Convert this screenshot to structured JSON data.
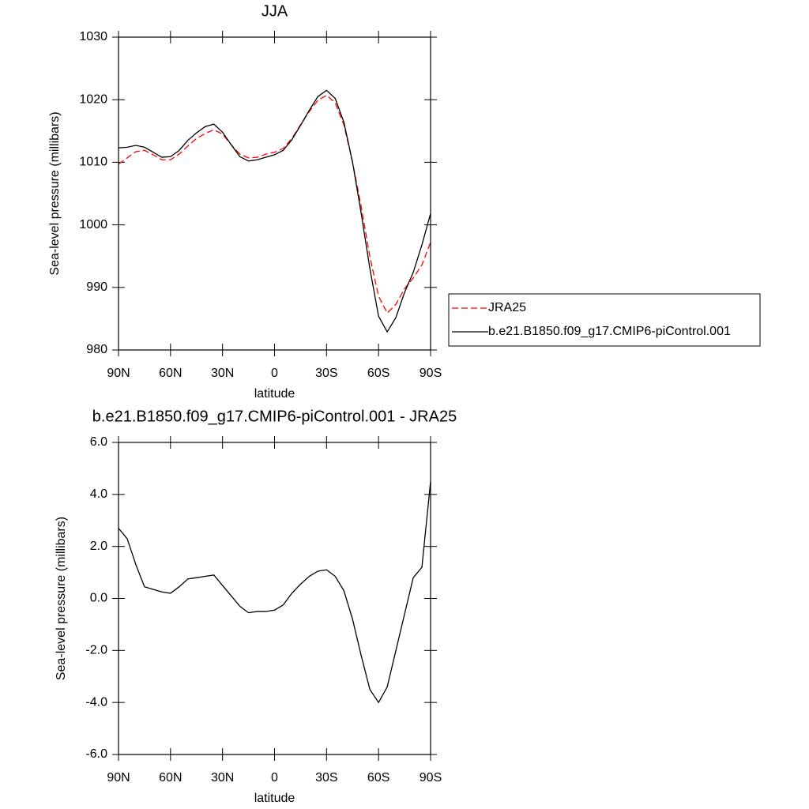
{
  "chart_data": [
    {
      "type": "line",
      "title": "JJA",
      "x_label": "latitude",
      "y_label": "Sea-level pressure (millibars)",
      "x": [
        90,
        85,
        80,
        75,
        70,
        65,
        60,
        55,
        50,
        45,
        40,
        35,
        30,
        25,
        20,
        15,
        10,
        5,
        0,
        -5,
        -10,
        -15,
        -20,
        -25,
        -30,
        -35,
        -40,
        -45,
        -50,
        -55,
        -60,
        -65,
        -70,
        -75,
        -80,
        -85,
        -90
      ],
      "xlim": [
        90,
        -90
      ],
      "xticks": [
        {
          "value": 90,
          "label": "90N"
        },
        {
          "value": 60,
          "label": "60N"
        },
        {
          "value": 30,
          "label": "30N"
        },
        0,
        {
          "value": -30,
          "label": "30S"
        },
        {
          "value": -60,
          "label": "60S"
        },
        {
          "value": -90,
          "label": "90S"
        }
      ],
      "ylim": [
        980,
        1030
      ],
      "yticks": [
        980,
        990,
        1000,
        1010,
        1020,
        1030
      ],
      "series": [
        {
          "name": "JRA25",
          "color": "#ff0000",
          "line_style": "dashed",
          "values": [
            1009.7,
            1010.7,
            1011.7,
            1011.9,
            1011.2,
            1010.4,
            1010.4,
            1011.3,
            1012.6,
            1013.8,
            1014.6,
            1015.2,
            1014.5,
            1012.8,
            1011.3,
            1010.7,
            1010.8,
            1011.3,
            1011.6,
            1012.2,
            1013.8,
            1016.0,
            1018.1,
            1019.9,
            1020.7,
            1019.5,
            1016.0,
            1010.0,
            1002.9,
            994.9,
            988.6,
            985.9,
            987.3,
            989.8,
            991.5,
            993.6,
            997.2
          ]
        },
        {
          "name": "b.e21.B1850.f09_g17.CMIP6-piControl.001",
          "color": "#000000",
          "line_style": "solid",
          "values": [
            1012.3,
            1012.4,
            1012.7,
            1012.4,
            1011.6,
            1010.8,
            1010.9,
            1011.9,
            1013.5,
            1014.7,
            1015.7,
            1016.1,
            1014.8,
            1012.8,
            1010.9,
            1010.2,
            1010.4,
            1010.8,
            1011.2,
            1011.9,
            1013.6,
            1015.9,
            1018.3,
            1020.5,
            1021.5,
            1020.2,
            1016.4,
            1010.0,
            1001.8,
            993.0,
            985.4,
            982.9,
            985.2,
            989.2,
            992.4,
            996.8,
            1001.8
          ]
        }
      ],
      "legend": "right"
    },
    {
      "type": "line",
      "title": "b.e21.B1850.f09_g17.CMIP6-piControl.001 - JRA25",
      "x_label": "latitude",
      "y_label": "Sea-level pressure (millibars)",
      "x": [
        90,
        85,
        80,
        75,
        70,
        65,
        60,
        55,
        50,
        45,
        40,
        35,
        30,
        25,
        20,
        15,
        10,
        5,
        0,
        -5,
        -10,
        -15,
        -20,
        -25,
        -30,
        -35,
        -40,
        -45,
        -50,
        -55,
        -60,
        -65,
        -70,
        -75,
        -80,
        -85,
        -90
      ],
      "xlim": [
        90,
        -90
      ],
      "xticks": [
        {
          "value": 90,
          "label": "90N"
        },
        {
          "value": 60,
          "label": "60N"
        },
        {
          "value": 30,
          "label": "30N"
        },
        0,
        {
          "value": -30,
          "label": "30S"
        },
        {
          "value": -60,
          "label": "60S"
        },
        {
          "value": -90,
          "label": "90S"
        }
      ],
      "ylim": [
        -6,
        6
      ],
      "yticks": [
        {
          "value": -6,
          "label": "-6.0"
        },
        {
          "value": -4,
          "label": "-4.0"
        },
        {
          "value": -2,
          "label": "-2.0"
        },
        {
          "value": 0,
          "label": "0.0"
        },
        {
          "value": 2,
          "label": "2.0"
        },
        {
          "value": 4,
          "label": "4.0"
        },
        {
          "value": 6,
          "label": "6.0"
        }
      ],
      "color": "#000000",
      "values": [
        2.7,
        2.3,
        1.3,
        0.45,
        0.35,
        0.25,
        0.2,
        0.45,
        0.75,
        0.8,
        0.85,
        0.9,
        0.5,
        0.1,
        -0.3,
        -0.55,
        -0.5,
        -0.5,
        -0.45,
        -0.25,
        0.2,
        0.55,
        0.85,
        1.05,
        1.1,
        0.85,
        0.3,
        -0.8,
        -2.2,
        -3.5,
        -4.0,
        -3.4,
        -2.0,
        -0.6,
        0.8,
        1.2,
        4.5
      ]
    }
  ]
}
